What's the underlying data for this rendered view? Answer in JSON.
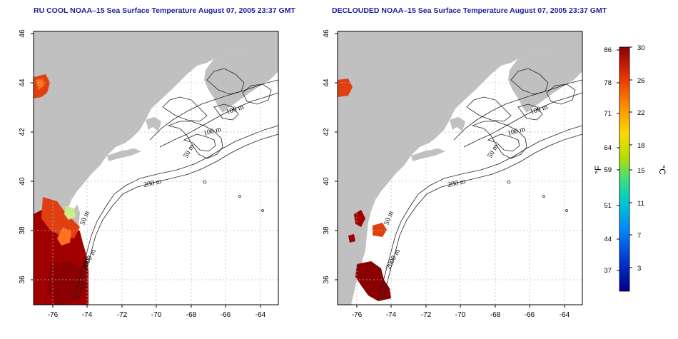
{
  "panels": [
    {
      "id": "ru-cool",
      "title": "RU COOL NOAA–15 Sea Surface Temperature August 07, 2005 23:37 GMT",
      "contour_labels": [
        "100 m",
        "100 m",
        "50 m",
        "200 m",
        "50 m",
        "2000 m"
      ]
    },
    {
      "id": "declouded",
      "title": "DECLOUDED NOAA–15 Sea Surface Temperature August 07, 2005 23:37 GMT",
      "contour_labels": [
        "100 m",
        "100 m",
        "50 m",
        "200 m",
        "50 m",
        "2000 m"
      ]
    }
  ],
  "axes": {
    "x_ticks": [
      "-76",
      "-74",
      "-72",
      "-70",
      "-68",
      "-66",
      "-64"
    ],
    "y_ticks": [
      "36",
      "38",
      "40",
      "42",
      "44",
      "46"
    ],
    "lon_range": [
      -77.2,
      -63.0
    ],
    "lat_range": [
      35.0,
      46.0
    ],
    "grid": true
  },
  "colorbar": {
    "fahrenheit_ticks": [
      "86",
      "78",
      "71",
      "64",
      "59",
      "51",
      "44",
      "37"
    ],
    "celsius_ticks": [
      "30",
      "26",
      "22",
      "18",
      "15",
      "11",
      "7",
      "3"
    ],
    "left_unit": "°F",
    "right_unit": "°C",
    "colors": [
      "#00008b",
      "#0033cc",
      "#0088ff",
      "#00cccc",
      "#33dd88",
      "#b8e000",
      "#ffd800",
      "#ff8c00",
      "#e83000",
      "#8b0000"
    ]
  },
  "colors": {
    "land": "#c0c0c0",
    "sst_warm": "#a00000",
    "sst_hot": "#e04010",
    "sst_orange": "#ff7020",
    "title": "#1f1f9c"
  }
}
